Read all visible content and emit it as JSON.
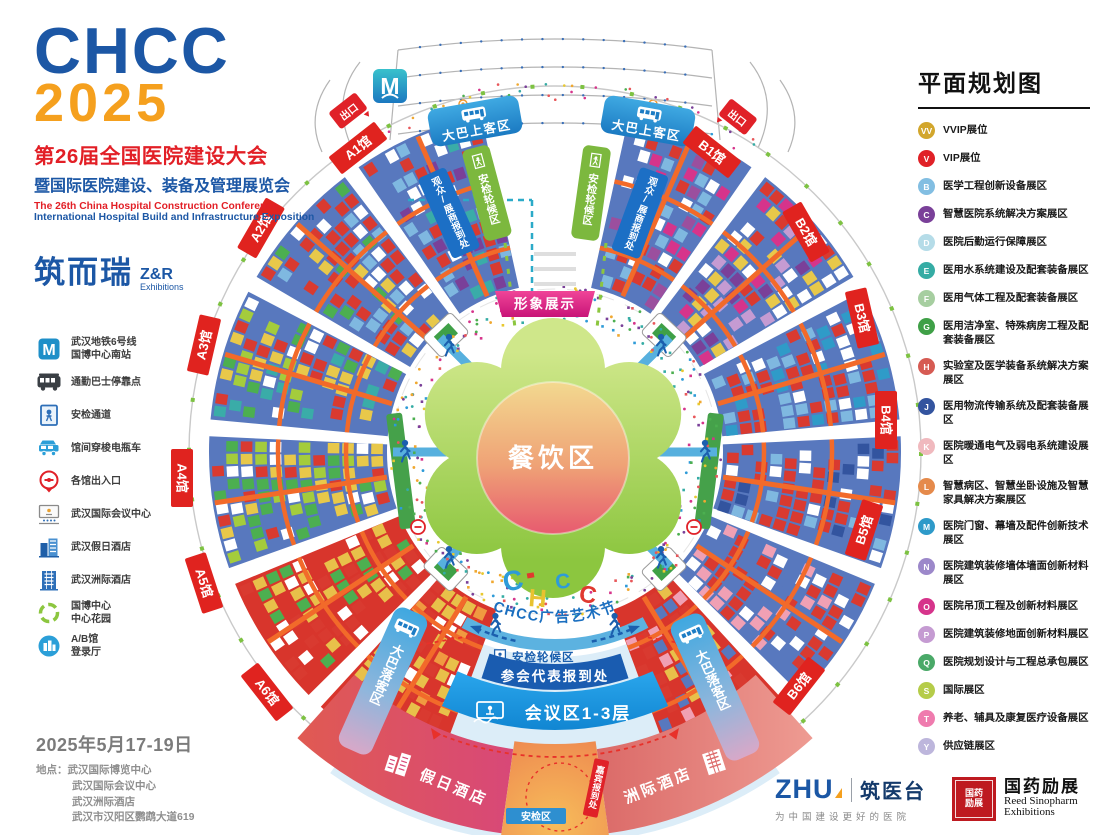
{
  "brand": {
    "logo": "CHCC",
    "year": "2025",
    "title_cn": "第26届全国医院建设大会",
    "subtitle_cn": "暨国际医院建设、装备及管理展览会",
    "title_en1": "The 26th China Hospital Construction Conference",
    "title_en2": "International Hospital Build and Infrastructure Exposition",
    "organizer_cn": "筑而瑞",
    "organizer_zr": "Z&R",
    "organizer_sub": "Exhibitions"
  },
  "site_legend": [
    {
      "label": "武汉地铁6号线\n国博中心南站"
    },
    {
      "label": "通勤巴士停靠点"
    },
    {
      "label": "安检通道"
    },
    {
      "label": "馆间穿梭电瓶车"
    },
    {
      "label": "各馆出入口"
    },
    {
      "label": "武汉国际会议中心"
    },
    {
      "label": "武汉假日酒店"
    },
    {
      "label": "武汉洲际酒店"
    },
    {
      "label": "国博中心\n中心花园"
    },
    {
      "label": "A/B馆\n登录厅"
    }
  ],
  "plan_legend": {
    "title": "平面规划图",
    "items": [
      {
        "code": "VV",
        "color": "#D2A62C",
        "label": "VVIP展位"
      },
      {
        "code": "V",
        "color": "#E02127",
        "label": "VIP展位"
      },
      {
        "code": "B",
        "color": "#82BEE2",
        "label": "医学工程创新设备展区"
      },
      {
        "code": "C",
        "color": "#7A4099",
        "label": "智慧医院系统解决方案展区"
      },
      {
        "code": "D",
        "color": "#B5DCE8",
        "label": "医院后勤运行保障展区"
      },
      {
        "code": "E",
        "color": "#35ACA4",
        "label": "医用水系统建设及配套装备展区"
      },
      {
        "code": "F",
        "color": "#A6CEA0",
        "label": "医用气体工程及配套装备展区"
      },
      {
        "code": "G",
        "color": "#3FA047",
        "label": "医用洁净室、特殊病房工程及配套装备展区"
      },
      {
        "code": "H",
        "color": "#D65B53",
        "label": "实验室及医学装备系统解决方案展区"
      },
      {
        "code": "J",
        "color": "#33549F",
        "label": "医用物流传输系统及配套装备展区"
      },
      {
        "code": "K",
        "color": "#F0B9BE",
        "label": "医院暖通电气及弱电系统建设展区"
      },
      {
        "code": "L",
        "color": "#E58A4B",
        "label": "智慧病区、智慧坐卧设施及智慧家具解决方案展区"
      },
      {
        "code": "M",
        "color": "#2E9AC9",
        "label": "医院门窗、幕墙及配件创新技术展区"
      },
      {
        "code": "N",
        "color": "#9C88CA",
        "label": "医院建筑装修墙体墙面创新材料展区"
      },
      {
        "code": "O",
        "color": "#D6348B",
        "label": "医院吊顶工程及创新材料展区"
      },
      {
        "code": "P",
        "color": "#C59BD2",
        "label": "医院建筑装修地面创新材料展区"
      },
      {
        "code": "Q",
        "color": "#4AA968",
        "label": "医院规划设计与工程总承包展区"
      },
      {
        "code": "S",
        "color": "#B5CC49",
        "label": "国际展区"
      },
      {
        "code": "T",
        "color": "#EF7BAE",
        "label": "养老、辅具及康复医疗设备展区"
      },
      {
        "code": "Y",
        "color": "#BDB6DC",
        "label": "供应链展区"
      }
    ]
  },
  "map": {
    "halls": {
      "a": [
        "A1馆",
        "A2馆",
        "A3馆",
        "A4馆",
        "A5馆",
        "A6馆"
      ],
      "b": [
        "B1馆",
        "B2馆",
        "B3馆",
        "B4馆",
        "B5馆",
        "B6馆"
      ]
    },
    "labels": {
      "image_display": "形象展示",
      "dining": "餐饮区",
      "ad_festival": "CHCC广告艺术节",
      "art": [
        "C",
        "H",
        "C",
        "C"
      ],
      "security_wait": "安检轮候区",
      "bus_boarding": "大巴上客区",
      "bus_dropoff": "大巴落客区",
      "visitor_reg": "观众/展商报到处",
      "delegate_reg": "参会代表报到处",
      "conference": "会议区1-3层",
      "holiday_inn": "假日酒店",
      "intercontinental": "洲际酒店",
      "guest_reg": "嘉宾报到处",
      "security_zone": "安检区",
      "exit": "出口",
      "metro": "M"
    }
  },
  "footer": {
    "dates": "2025年5月17-19日",
    "venue_label": "地点：",
    "venues": [
      "武汉国际博览中心",
      "武汉国际会议中心",
      "武汉洲际酒店",
      "武汉市汉阳区鹦鹉大道619"
    ]
  },
  "partners": {
    "zhu_logo": "ZHU",
    "zhu_name": "筑医台",
    "zhu_tagline": "为中国建设更好的医院",
    "sino_seal": "国药励展",
    "sino_cn": "国药励展",
    "sino_en1": "Reed Sinopharm",
    "sino_en2": "Exhibitions"
  }
}
